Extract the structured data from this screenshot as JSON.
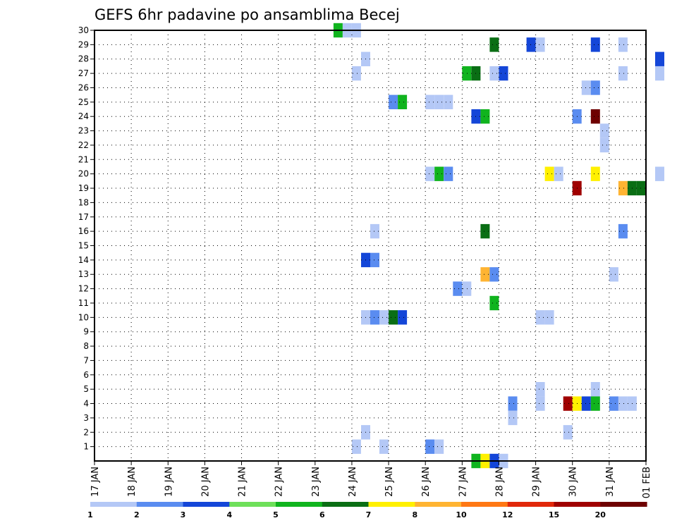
{
  "chart_data": {
    "type": "heatmap",
    "title": "GEFS 6hr padavine po ansamblima Becej",
    "xlabel": "",
    "ylabel": "",
    "x_ticks": [
      "17 JAN",
      "18 JAN",
      "19 JAN",
      "20 JAN",
      "21 JAN",
      "22 JAN",
      "23 JAN",
      "24 JAN",
      "25 JAN",
      "26 JAN",
      "27 JAN",
      "28 JAN",
      "29 JAN",
      "30 JAN",
      "31 JAN",
      "01 FEB"
    ],
    "y_ticks": [
      1,
      2,
      3,
      4,
      5,
      6,
      7,
      8,
      9,
      10,
      11,
      12,
      13,
      14,
      15,
      16,
      17,
      18,
      19,
      20,
      21,
      22,
      23,
      24,
      25,
      26,
      27,
      28,
      29,
      30
    ],
    "y_range": [
      0,
      30
    ],
    "time_step": "6hr",
    "grid": true,
    "legend": {
      "position": "bottom",
      "labels": [
        "1",
        "2",
        "3",
        "4",
        "5",
        "6",
        "7",
        "8",
        "10",
        "12",
        "15",
        "20"
      ],
      "colors": [
        "#b4c8f6",
        "#5a8cf0",
        "#1446d8",
        "#6ee05a",
        "#10b41e",
        "#0a6e14",
        "#fff000",
        "#ffb432",
        "#ff7814",
        "#e1280a",
        "#a00000",
        "#6e0000"
      ]
    },
    "points": [
      {
        "t": "2019-01-23 12",
        "m": 30,
        "v": 5
      },
      {
        "t": "2019-01-23 18",
        "m": 30,
        "v": 1
      },
      {
        "t": "2019-01-24 00",
        "m": 30,
        "v": 1
      },
      {
        "t": "2019-01-24 00",
        "m": 27,
        "v": 1
      },
      {
        "t": "2019-01-24 06",
        "m": 28,
        "v": 1
      },
      {
        "t": "2019-01-27 18",
        "m": 29,
        "v": 6
      },
      {
        "t": "2019-01-27 18",
        "m": 11,
        "v": 5
      },
      {
        "t": "2019-01-28 18",
        "m": 29,
        "v": 3
      },
      {
        "t": "2019-01-29 00",
        "m": 29,
        "v": 1
      },
      {
        "t": "2019-01-30 12",
        "m": 29,
        "v": 3
      },
      {
        "t": "2019-01-31 06",
        "m": 29,
        "v": 1
      },
      {
        "t": "2019-02-01 06",
        "m": 28,
        "v": 3
      },
      {
        "t": "2019-02-01 06",
        "m": 27,
        "v": 1
      },
      {
        "t": "2019-02-01 06",
        "m": 20,
        "v": 1
      },
      {
        "t": "2019-01-27 00",
        "m": 27,
        "v": 5
      },
      {
        "t": "2019-01-27 06",
        "m": 27,
        "v": 6
      },
      {
        "t": "2019-01-27 18",
        "m": 27,
        "v": 1
      },
      {
        "t": "2019-01-28 00",
        "m": 27,
        "v": 3
      },
      {
        "t": "2019-01-31 06",
        "m": 27,
        "v": 1
      },
      {
        "t": "2019-01-30 06",
        "m": 26,
        "v": 1
      },
      {
        "t": "2019-01-30 12",
        "m": 26,
        "v": 2
      },
      {
        "t": "2019-01-25 00",
        "m": 25,
        "v": 2
      },
      {
        "t": "2019-01-25 06",
        "m": 25,
        "v": 5
      },
      {
        "t": "2019-01-26 00",
        "m": 25,
        "v": 1
      },
      {
        "t": "2019-01-26 06",
        "m": 25,
        "v": 1
      },
      {
        "t": "2019-01-26 12",
        "m": 25,
        "v": 1
      },
      {
        "t": "2019-01-27 06",
        "m": 24,
        "v": 3
      },
      {
        "t": "2019-01-27 12",
        "m": 24,
        "v": 5
      },
      {
        "t": "2019-01-30 00",
        "m": 24,
        "v": 2
      },
      {
        "t": "2019-01-30 12",
        "m": 24,
        "v": 20
      },
      {
        "t": "2019-01-30 18",
        "m": 23,
        "v": 1
      },
      {
        "t": "2019-01-30 18",
        "m": 22,
        "v": 1
      },
      {
        "t": "2019-01-26 00",
        "m": 20,
        "v": 1
      },
      {
        "t": "2019-01-26 06",
        "m": 20,
        "v": 5
      },
      {
        "t": "2019-01-26 12",
        "m": 20,
        "v": 2
      },
      {
        "t": "2019-01-29 06",
        "m": 20,
        "v": 7
      },
      {
        "t": "2019-01-29 12",
        "m": 20,
        "v": 1
      },
      {
        "t": "2019-01-30 12",
        "m": 20,
        "v": 7
      },
      {
        "t": "2019-01-30 00",
        "m": 19,
        "v": 15
      },
      {
        "t": "2019-01-31 06",
        "m": 19,
        "v": 8
      },
      {
        "t": "2019-01-31 12",
        "m": 19,
        "v": 6
      },
      {
        "t": "2019-01-31 18",
        "m": 19,
        "v": 6
      },
      {
        "t": "2019-01-24 12",
        "m": 16,
        "v": 1
      },
      {
        "t": "2019-01-27 12",
        "m": 16,
        "v": 6
      },
      {
        "t": "2019-01-31 06",
        "m": 16,
        "v": 2
      },
      {
        "t": "2019-01-24 06",
        "m": 14,
        "v": 3
      },
      {
        "t": "2019-01-24 12",
        "m": 14,
        "v": 2
      },
      {
        "t": "2019-01-27 12",
        "m": 13,
        "v": 8
      },
      {
        "t": "2019-01-27 18",
        "m": 13,
        "v": 2
      },
      {
        "t": "2019-01-31 00",
        "m": 13,
        "v": 1
      },
      {
        "t": "2019-01-26 18",
        "m": 12,
        "v": 2
      },
      {
        "t": "2019-01-27 00",
        "m": 12,
        "v": 1
      },
      {
        "t": "2019-01-24 06",
        "m": 10,
        "v": 1
      },
      {
        "t": "2019-01-24 12",
        "m": 10,
        "v": 2
      },
      {
        "t": "2019-01-24 18",
        "m": 10,
        "v": 1
      },
      {
        "t": "2019-01-25 00",
        "m": 10,
        "v": 6
      },
      {
        "t": "2019-01-25 06",
        "m": 10,
        "v": 3
      },
      {
        "t": "2019-01-29 00",
        "m": 10,
        "v": 1
      },
      {
        "t": "2019-01-29 06",
        "m": 10,
        "v": 1
      },
      {
        "t": "2019-01-29 00",
        "m": 5,
        "v": 1
      },
      {
        "t": "2019-01-29 00",
        "m": 4,
        "v": 1
      },
      {
        "t": "2019-01-30 12",
        "m": 5,
        "v": 1
      },
      {
        "t": "2019-01-28 06",
        "m": 4,
        "v": 2
      },
      {
        "t": "2019-01-28 06",
        "m": 3,
        "v": 1
      },
      {
        "t": "2019-01-29 18",
        "m": 4,
        "v": 15
      },
      {
        "t": "2019-01-30 00",
        "m": 4,
        "v": 7
      },
      {
        "t": "2019-01-30 06",
        "m": 4,
        "v": 3
      },
      {
        "t": "2019-01-30 12",
        "m": 4,
        "v": 5
      },
      {
        "t": "2019-01-31 00",
        "m": 4,
        "v": 2
      },
      {
        "t": "2019-01-31 06",
        "m": 4,
        "v": 1
      },
      {
        "t": "2019-01-31 12",
        "m": 4,
        "v": 1
      },
      {
        "t": "2019-01-24 06",
        "m": 2,
        "v": 1
      },
      {
        "t": "2019-01-29 18",
        "m": 2,
        "v": 1
      },
      {
        "t": "2019-01-24 00",
        "m": 1,
        "v": 1
      },
      {
        "t": "2019-01-24 18",
        "m": 1,
        "v": 1
      },
      {
        "t": "2019-01-26 00",
        "m": 1,
        "v": 2
      },
      {
        "t": "2019-01-26 06",
        "m": 1,
        "v": 1
      },
      {
        "t": "2019-01-27 06",
        "m": 0,
        "v": 5
      },
      {
        "t": "2019-01-27 12",
        "m": 0,
        "v": 7
      },
      {
        "t": "2019-01-27 18",
        "m": 0,
        "v": 3
      },
      {
        "t": "2019-01-28 00",
        "m": 0,
        "v": 1
      }
    ]
  }
}
